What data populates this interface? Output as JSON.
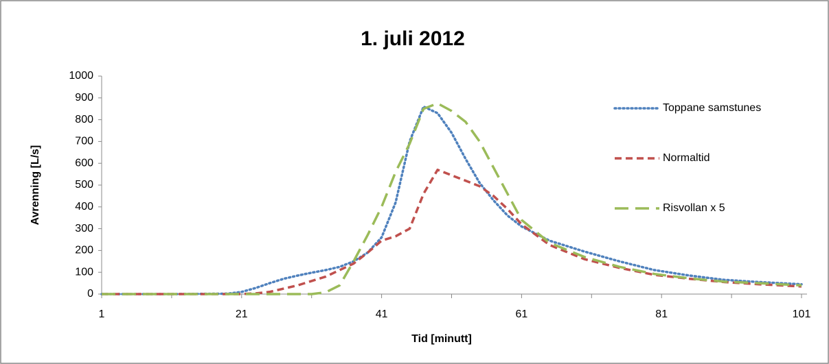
{
  "chart_data": {
    "type": "line",
    "title": "1. juli 2012",
    "x_label": "Tid [minutt]",
    "y_label": "Avrenning [L/s]",
    "x": [
      1,
      11,
      19,
      21,
      23,
      25,
      27,
      29,
      31,
      33,
      35,
      37,
      39,
      41,
      43,
      45,
      47,
      49,
      51,
      53,
      55,
      57,
      59,
      61,
      65,
      70,
      75,
      80,
      85,
      90,
      95,
      101
    ],
    "series": [
      {
        "name": "Toppane samstunes",
        "color": "#4f81bd",
        "dash": "dotted",
        "values": [
          0,
          0,
          2,
          10,
          28,
          50,
          70,
          85,
          98,
          110,
          125,
          150,
          190,
          260,
          420,
          700,
          860,
          830,
          740,
          620,
          510,
          430,
          360,
          310,
          245,
          195,
          150,
          110,
          85,
          65,
          55,
          45
        ]
      },
      {
        "name": "Normaltid",
        "color": "#c0504d",
        "dash": "dashed",
        "values": [
          0,
          0,
          0,
          0,
          3,
          10,
          25,
          40,
          60,
          80,
          110,
          140,
          190,
          245,
          265,
          300,
          460,
          570,
          545,
          520,
          495,
          450,
          390,
          320,
          225,
          160,
          120,
          88,
          70,
          55,
          45,
          35
        ]
      },
      {
        "name": "Risvollan x 5",
        "color": "#9bbb59",
        "dash": "longdash",
        "values": [
          0,
          0,
          0,
          0,
          0,
          0,
          0,
          0,
          0,
          8,
          40,
          150,
          270,
          400,
          560,
          690,
          850,
          875,
          840,
          790,
          700,
          580,
          460,
          340,
          235,
          170,
          125,
          92,
          72,
          57,
          50,
          40
        ]
      }
    ],
    "xlim": [
      1,
      101
    ],
    "xticks": [
      1,
      21,
      41,
      61,
      81,
      101
    ],
    "ylim": [
      0,
      1000
    ],
    "yticks": [
      0,
      100,
      200,
      300,
      400,
      500,
      600,
      700,
      800,
      900,
      1000
    ],
    "grid": false,
    "legend": "right"
  }
}
